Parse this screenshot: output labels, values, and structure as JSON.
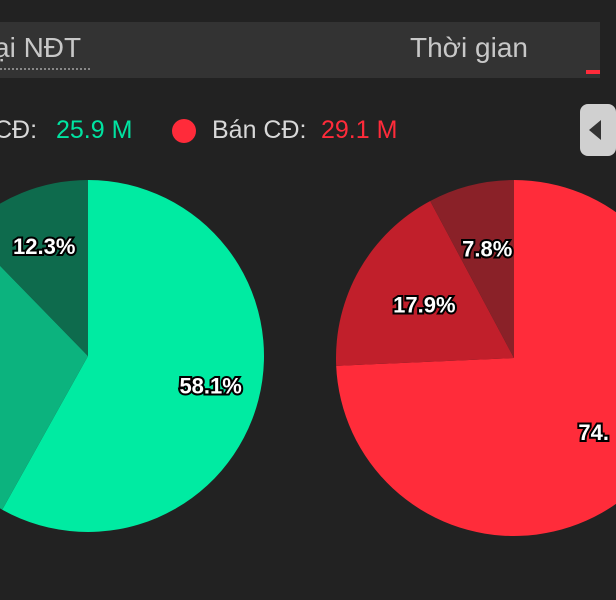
{
  "tabs": {
    "left_label": "ại NĐT",
    "right_label": "Thời gian"
  },
  "legend": {
    "buy_label": "CĐ:",
    "buy_value": "25.9 M",
    "sell_label": "Bán CĐ:",
    "sell_value": "29.1 M"
  },
  "icons": {
    "scroll": "chevron-left-icon",
    "sell_marker": "circle-icon"
  },
  "colors": {
    "buy": "#00e3a1",
    "sell": "#ff2b3a"
  },
  "chart_data": [
    {
      "type": "pie",
      "series": "buy",
      "values": [
        58.1,
        29.6,
        12.3
      ],
      "labels": [
        "58.1%",
        "",
        "12.3%"
      ],
      "colors": [
        "#00eba2",
        "#0cb37e",
        "#0e6b4d"
      ]
    },
    {
      "type": "pie",
      "series": "sell",
      "values": [
        74.3,
        17.9,
        7.8
      ],
      "labels": [
        "74.",
        "17.9%",
        "7.8%"
      ],
      "colors": [
        "#ff2c3a",
        "#c11f2b",
        "#8a2128"
      ]
    }
  ]
}
